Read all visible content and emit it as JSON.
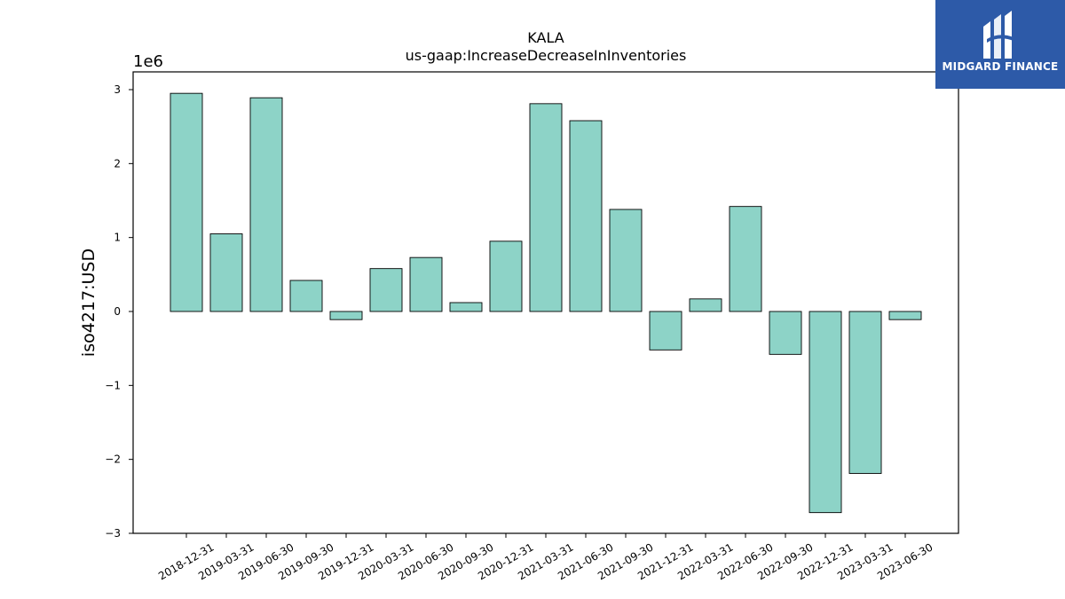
{
  "chart_data": {
    "type": "bar",
    "title": "KALA",
    "subtitle": "us-gaap:IncreaseDecreaseInInventories",
    "xlabel": "",
    "ylabel": "iso4217:USD",
    "y_multiplier_label": "1e6",
    "ylim": [
      -3000000,
      3000000
    ],
    "yticks": [
      -3000000,
      -2000000,
      -1000000,
      0,
      1000000,
      2000000,
      3000000
    ],
    "ytick_labels": [
      "−3",
      "−2",
      "−1",
      "0",
      "1",
      "2",
      "3"
    ],
    "categories": [
      "2018-12-31",
      "2019-03-31",
      "2019-06-30",
      "2019-09-30",
      "2019-12-31",
      "2020-03-31",
      "2020-06-30",
      "2020-09-30",
      "2020-12-31",
      "2021-03-31",
      "2021-06-30",
      "2021-09-30",
      "2021-12-31",
      "2022-03-31",
      "2022-06-30",
      "2022-09-30",
      "2022-12-31",
      "2023-03-31",
      "2023-06-30"
    ],
    "values": [
      2950000,
      1050000,
      2890000,
      420000,
      -110000,
      580000,
      730000,
      120000,
      950000,
      2810000,
      2580000,
      1380000,
      -520000,
      170000,
      1420000,
      -580000,
      -2720000,
      -2190000,
      -110000
    ],
    "bar_color": "#8dd3c7",
    "edge_color": "#000000",
    "grid": false,
    "legend": "none"
  },
  "logo": {
    "text": "MIDGARD FINANCE",
    "icon": "midgard-logo-icon",
    "background": "#2d5aa8"
  }
}
